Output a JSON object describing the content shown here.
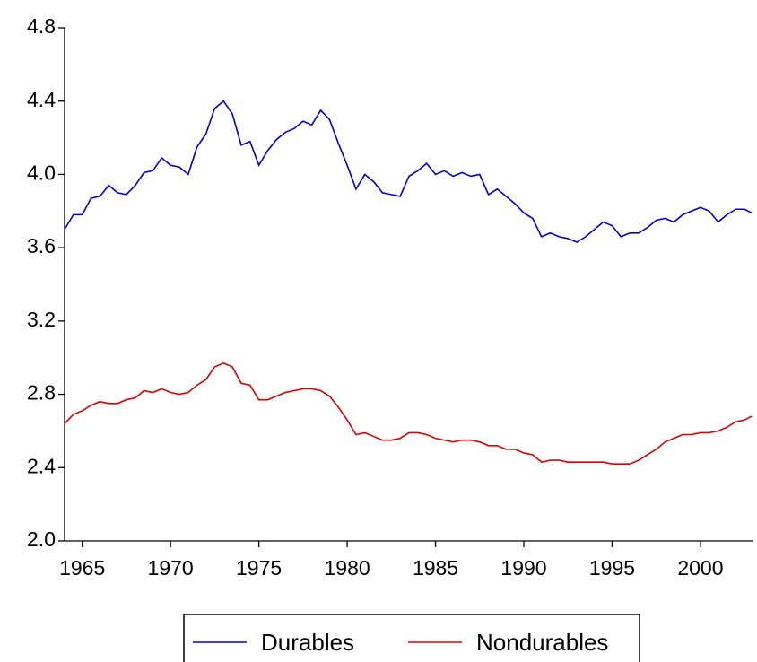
{
  "chart_data": {
    "type": "line",
    "x": [
      1964.0,
      1964.5,
      1965.0,
      1965.5,
      1966.0,
      1966.5,
      1967.0,
      1967.5,
      1968.0,
      1968.5,
      1969.0,
      1969.5,
      1970.0,
      1970.5,
      1971.0,
      1971.5,
      1972.0,
      1972.5,
      1973.0,
      1973.5,
      1974.0,
      1974.5,
      1975.0,
      1975.5,
      1976.0,
      1976.5,
      1977.0,
      1977.5,
      1978.0,
      1978.5,
      1979.0,
      1979.5,
      1980.0,
      1980.5,
      1981.0,
      1981.5,
      1982.0,
      1982.5,
      1983.0,
      1983.5,
      1984.0,
      1984.5,
      1985.0,
      1985.5,
      1986.0,
      1986.5,
      1987.0,
      1987.5,
      1988.0,
      1988.5,
      1989.0,
      1989.5,
      1990.0,
      1990.5,
      1991.0,
      1991.5,
      1992.0,
      1992.5,
      1993.0,
      1993.5,
      1994.0,
      1994.5,
      1995.0,
      1995.5,
      1996.0,
      1996.5,
      1997.0,
      1997.5,
      1998.0,
      1998.5,
      1999.0,
      1999.5,
      2000.0,
      2000.5,
      2001.0,
      2001.5,
      2002.0,
      2002.5,
      2002.9
    ],
    "series": [
      {
        "name": "Durables",
        "color": "#0000dd",
        "values": [
          3.7,
          3.78,
          3.78,
          3.87,
          3.88,
          3.94,
          3.9,
          3.89,
          3.94,
          4.01,
          4.02,
          4.09,
          4.05,
          4.04,
          4.0,
          4.15,
          4.22,
          4.36,
          4.4,
          4.33,
          4.16,
          4.18,
          4.05,
          4.13,
          4.19,
          4.23,
          4.25,
          4.29,
          4.27,
          4.35,
          4.3,
          4.17,
          4.05,
          3.92,
          4.0,
          3.96,
          3.9,
          3.89,
          3.88,
          3.99,
          4.02,
          4.06,
          4.0,
          4.02,
          3.99,
          4.01,
          3.99,
          4.0,
          3.89,
          3.92,
          3.88,
          3.84,
          3.79,
          3.76,
          3.66,
          3.68,
          3.66,
          3.65,
          3.63,
          3.66,
          3.7,
          3.74,
          3.72,
          3.66,
          3.68,
          3.68,
          3.71,
          3.75,
          3.76,
          3.74,
          3.78,
          3.8,
          3.82,
          3.8,
          3.74,
          3.78,
          3.81,
          3.81,
          3.79
        ]
      },
      {
        "name": "Nondurables",
        "color": "#dd0000",
        "values": [
          2.64,
          2.69,
          2.71,
          2.74,
          2.76,
          2.75,
          2.75,
          2.77,
          2.78,
          2.82,
          2.81,
          2.83,
          2.81,
          2.8,
          2.81,
          2.85,
          2.88,
          2.95,
          2.97,
          2.95,
          2.86,
          2.85,
          2.77,
          2.77,
          2.79,
          2.81,
          2.82,
          2.83,
          2.83,
          2.82,
          2.79,
          2.73,
          2.66,
          2.58,
          2.59,
          2.57,
          2.55,
          2.55,
          2.56,
          2.59,
          2.59,
          2.58,
          2.56,
          2.55,
          2.54,
          2.55,
          2.55,
          2.54,
          2.52,
          2.52,
          2.5,
          2.5,
          2.48,
          2.47,
          2.43,
          2.44,
          2.44,
          2.43,
          2.43,
          2.43,
          2.43,
          2.43,
          2.42,
          2.42,
          2.42,
          2.44,
          2.47,
          2.5,
          2.54,
          2.56,
          2.58,
          2.58,
          2.59,
          2.59,
          2.6,
          2.62,
          2.65,
          2.66,
          2.68
        ]
      }
    ],
    "xlim": [
      1964,
      2003
    ],
    "xticks": [
      1965,
      1970,
      1975,
      1980,
      1985,
      1990,
      1995,
      2000
    ],
    "ylim": [
      2.0,
      4.8
    ],
    "yticks": [
      {
        "value": 2.0,
        "label": "2.0"
      },
      2.4,
      2.8,
      3.2,
      3.6,
      {
        "value": 4.0,
        "label": "4.0"
      },
      4.4,
      4.8
    ],
    "grid": false,
    "legend": "bottom"
  }
}
